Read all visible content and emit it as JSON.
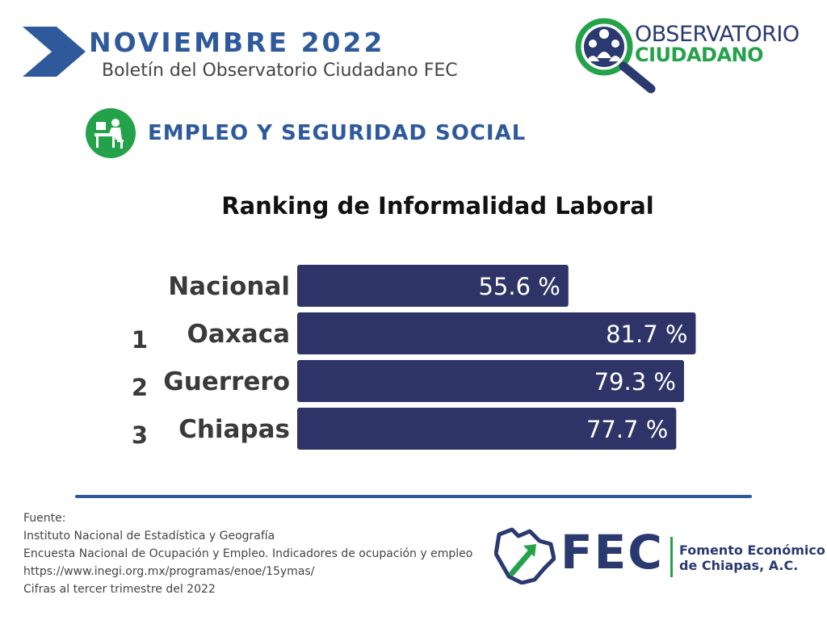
{
  "header": {
    "month_title": "NOVIEMBRE  2022",
    "subtitle": "Boletín del Observatorio Ciudadano FEC"
  },
  "observatorio_logo": {
    "line1": "OBSERVATORIO",
    "line2": "CIUDADANO",
    "icon": "magnifier-people-icon"
  },
  "section": {
    "title": "EMPLEO Y SEGURIDAD SOCIAL",
    "icon": "worker-desk-icon"
  },
  "chart_data": {
    "type": "bar",
    "orientation": "horizontal",
    "title": "Ranking de Informalidad Laboral",
    "categories": [
      "Nacional",
      "Oaxaca",
      "Guerrero",
      "Chiapas"
    ],
    "ranks": [
      "",
      "1",
      "2",
      "3"
    ],
    "values": [
      55.6,
      81.7,
      79.3,
      77.7
    ],
    "value_labels": [
      "55.6 %",
      "81.7 %",
      "79.3 %",
      "77.7 %"
    ],
    "xlim": [
      0,
      100
    ],
    "grid": false,
    "legend": "none",
    "bar_color": "#2f3468"
  },
  "source": {
    "lines": [
      "Fuente:",
      "Instituto Nacional de Estadística y Geografía",
      "Encuesta Nacional de Ocupación y Empleo. Indicadores de ocupación y empleo",
      "https://www.inegi.org.mx/programas/enoe/15ymas/",
      "Cifras al tercer trimestre del 2022"
    ]
  },
  "fec_logo": {
    "letters": "FEC",
    "name_line1": "Fomento Económico",
    "name_line2": "de Chiapas, A.C.",
    "icon": "chiapas-map-arrow-icon"
  },
  "colors": {
    "accent_blue": "#2e5a9c",
    "navy": "#2a3a70",
    "green": "#24a24a",
    "bar": "#2f3468"
  }
}
